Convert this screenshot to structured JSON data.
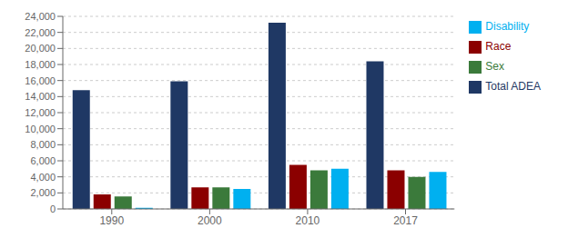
{
  "chart_data": {
    "type": "bar",
    "categories": [
      "1990",
      "2000",
      "2010",
      "2017"
    ],
    "series": [
      {
        "name": "Total ADEA",
        "color": "#1F3864",
        "values": [
          14800,
          15900,
          23200,
          18400
        ]
      },
      {
        "name": "Race",
        "color": "#8B0000",
        "values": [
          1800,
          2700,
          5500,
          4800
        ]
      },
      {
        "name": "Sex",
        "color": "#3B7A3B",
        "values": [
          1550,
          2700,
          4800,
          4000
        ]
      },
      {
        "name": "Disability",
        "color": "#00B0F0",
        "values": [
          150,
          2500,
          5000,
          4600
        ]
      }
    ],
    "ylim": [
      0,
      24000
    ],
    "yticks": [
      0,
      {
        "value": 2000,
        "label": "2,000"
      },
      {
        "value": 4000,
        "label": "4,000"
      },
      {
        "value": 6000,
        "label": "6,000"
      },
      {
        "value": 8000,
        "label": "8,000"
      },
      {
        "value": 10000,
        "label": "10,000"
      },
      {
        "value": 12000,
        "label": "12,000"
      },
      {
        "value": 14000,
        "label": "14,000"
      },
      {
        "value": 16000,
        "label": "16,000"
      },
      {
        "value": 18000,
        "label": "18,000"
      },
      {
        "value": 20000,
        "label": "20,000"
      },
      {
        "value": 22000,
        "label": "22,000"
      },
      {
        "value": 24000,
        "label": "24,000"
      }
    ],
    "grid": true,
    "legend": "right"
  }
}
